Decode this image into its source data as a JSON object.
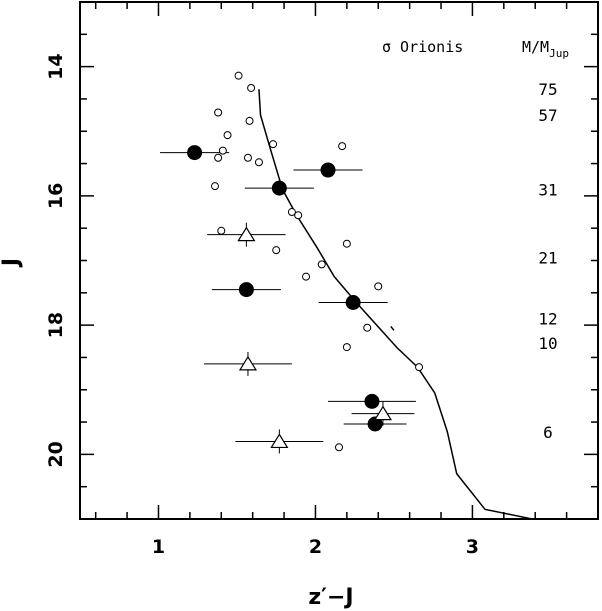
{
  "chart_data": {
    "type": "scatter",
    "title": "",
    "xlabel": "z′−J",
    "ylabel": "J",
    "xlim": [
      0.5,
      3.8
    ],
    "ylim": [
      21.0,
      13.0
    ],
    "y_inverted": true,
    "x_ticks": [
      1,
      2,
      3
    ],
    "y_ticks": [
      14,
      16,
      18,
      20
    ],
    "header": {
      "cluster": "σ Orionis",
      "mass_unit": "M/M",
      "mass_unit_sub": "Jup"
    },
    "mass_labels": [
      {
        "label": "75",
        "J": 14.35
      },
      {
        "label": "57",
        "J": 14.75
      },
      {
        "label": "31",
        "J": 15.9
      },
      {
        "label": "21",
        "J": 16.95
      },
      {
        "label": "12",
        "J": 17.9
      },
      {
        "label": "10",
        "J": 18.28
      },
      {
        "label": "6",
        "J": 19.65
      }
    ],
    "model_isochrone": [
      [
        1.64,
        14.35
      ],
      [
        1.65,
        14.75
      ],
      [
        1.71,
        15.25
      ],
      [
        1.79,
        15.9
      ],
      [
        1.88,
        16.3
      ],
      [
        2.01,
        16.8
      ],
      [
        2.12,
        17.25
      ],
      [
        2.26,
        17.65
      ],
      [
        2.39,
        18.0
      ],
      [
        2.52,
        18.35
      ],
      [
        2.65,
        18.65
      ],
      [
        2.76,
        19.05
      ],
      [
        2.84,
        19.65
      ],
      [
        2.9,
        20.3
      ],
      [
        3.08,
        20.85
      ],
      [
        3.38,
        21.0
      ]
    ],
    "model_kink": [
      [
        2.48,
        18.02
      ],
      [
        2.5,
        18.08
      ]
    ],
    "series": [
      {
        "marker": "open-circle",
        "points": [
          [
            1.51,
            14.14
          ],
          [
            1.59,
            14.33
          ],
          [
            1.38,
            14.71
          ],
          [
            1.58,
            14.84
          ],
          [
            1.44,
            15.06
          ],
          [
            1.73,
            15.2
          ],
          [
            1.41,
            15.3
          ],
          [
            1.38,
            15.41
          ],
          [
            1.57,
            15.41
          ],
          [
            2.17,
            15.23
          ],
          [
            1.64,
            15.48
          ],
          [
            1.36,
            15.85
          ],
          [
            1.85,
            16.25
          ],
          [
            1.89,
            16.3
          ],
          [
            1.4,
            16.54
          ],
          [
            1.75,
            16.84
          ],
          [
            2.2,
            16.74
          ],
          [
            2.04,
            17.06
          ],
          [
            1.94,
            17.25
          ],
          [
            2.4,
            17.4
          ],
          [
            2.33,
            18.04
          ],
          [
            2.2,
            18.34
          ],
          [
            2.66,
            18.65
          ],
          [
            2.15,
            19.89
          ]
        ]
      },
      {
        "marker": "filled-circle",
        "points": [
          {
            "x": 1.23,
            "y": 15.33,
            "xerr": 0.22
          },
          {
            "x": 1.77,
            "y": 15.88,
            "xerr": 0.22
          },
          {
            "x": 2.08,
            "y": 15.6,
            "xerr": 0.22
          },
          {
            "x": 1.56,
            "y": 17.45,
            "xerr": 0.22
          },
          {
            "x": 2.24,
            "y": 17.65,
            "xerr": 0.22
          },
          {
            "x": 2.36,
            "y": 19.18,
            "xerr": 0.28
          },
          {
            "x": 2.38,
            "y": 19.53,
            "xerr": 0.2
          }
        ]
      },
      {
        "marker": "open-triangle",
        "points": [
          {
            "x": 1.56,
            "y": 16.6,
            "xerr": 0.25
          },
          {
            "x": 1.57,
            "y": 18.6,
            "xerr": 0.28
          },
          {
            "x": 1.77,
            "y": 19.8,
            "xerr": 0.28
          },
          {
            "x": 2.43,
            "y": 19.37,
            "xerr": 0.2
          }
        ]
      }
    ]
  }
}
